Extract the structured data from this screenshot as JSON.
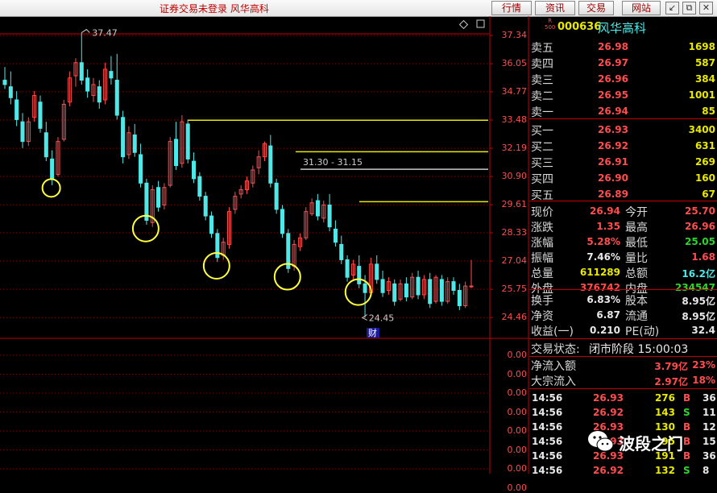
{
  "window": {
    "title": "证券交易未登录  风华高科",
    "buttons": [
      "行情",
      "资讯",
      "交易",
      "网站"
    ],
    "controls": [
      "↙",
      "⧉",
      "✕"
    ]
  },
  "stock": {
    "code": "000636",
    "name": "风华高科",
    "badge_top": "R",
    "badge_bottom": "500"
  },
  "ladder": [
    {
      "label": "卖五",
      "price": "26.98",
      "vol": "1698"
    },
    {
      "label": "卖四",
      "price": "26.97",
      "vol": "587"
    },
    {
      "label": "卖三",
      "price": "26.96",
      "vol": "384"
    },
    {
      "label": "卖二",
      "price": "26.95",
      "vol": "1001"
    },
    {
      "label": "卖一",
      "price": "26.94",
      "vol": "85"
    },
    {
      "label": "买一",
      "price": "26.93",
      "vol": "3400"
    },
    {
      "label": "买二",
      "price": "26.92",
      "vol": "631"
    },
    {
      "label": "买三",
      "price": "26.91",
      "vol": "269"
    },
    {
      "label": "买四",
      "price": "26.90",
      "vol": "160"
    },
    {
      "label": "买五",
      "price": "26.89",
      "vol": "67"
    }
  ],
  "quote": [
    {
      "l1": "现价",
      "v1": "26.94",
      "c1": "red",
      "l2": "今开",
      "v2": "25.70",
      "c2": "red"
    },
    {
      "l1": "涨跌",
      "v1": "1.35",
      "c1": "red",
      "l2": "最高",
      "v2": "26.96",
      "c2": "red"
    },
    {
      "l1": "涨幅",
      "v1": "5.28%",
      "c1": "red",
      "l2": "最低",
      "v2": "25.05",
      "c2": "grn"
    },
    {
      "l1": "振幅",
      "v1": "7.46%",
      "c1": "wht",
      "l2": "量比",
      "v2": "1.68",
      "c2": "red"
    },
    {
      "l1": "总量",
      "v1": "611289",
      "c1": "yel",
      "l2": "总额",
      "v2": "16.2亿",
      "c2": "cyan"
    },
    {
      "l1": "外盘",
      "v1": "376742",
      "c1": "red",
      "l2": "内盘",
      "v2": "234547",
      "c2": "grn"
    }
  ],
  "fundamentals": [
    {
      "l1": "换手",
      "v1": "6.83%",
      "l2": "股本",
      "v2": "8.95亿"
    },
    {
      "l1": "净资",
      "v1": "6.87",
      "l2": "流通",
      "v2": "8.95亿"
    },
    {
      "l1": "收益(一)",
      "v1": "0.210",
      "l2": "PE(动)",
      "v2": "32.4"
    }
  ],
  "status": {
    "label": "交易状态:",
    "value": "闭市阶段 15:00:03"
  },
  "flows": [
    {
      "label": "净流入额",
      "value": "3.79亿",
      "pct": "23%"
    },
    {
      "label": "大宗流入",
      "value": "2.97亿",
      "pct": "18%"
    }
  ],
  "ticks": [
    {
      "time": "14:56",
      "price": "26.93",
      "vol": "276",
      "side": "B",
      "n": "36"
    },
    {
      "time": "14:56",
      "price": "26.92",
      "vol": "143",
      "side": "S",
      "n": "11"
    },
    {
      "time": "14:56",
      "price": "26.93",
      "vol": "130",
      "side": "B",
      "n": "12"
    },
    {
      "time": "14:56",
      "price": "26.93",
      "vol": "95",
      "side": "B",
      "n": "15"
    },
    {
      "time": "14:56",
      "price": "26.93",
      "vol": "191",
      "side": "B",
      "n": "36"
    },
    {
      "time": "14:56",
      "price": "26.92",
      "vol": "132",
      "side": "S",
      "n": "8"
    }
  ],
  "lower_axis": [
    "0.00",
    "0.00",
    "0.00",
    "0.00",
    "0.00",
    "0.00",
    "0.00",
    "0.00"
  ],
  "watermark": "波段之门",
  "colors": {
    "up": "#ff4d4d",
    "down": "#4ee8e8",
    "bg": "#000000",
    "grid": "#8b0000",
    "yellow": "#e8e800"
  },
  "chart_data": {
    "type": "candlestick",
    "ylim": [
      24.1,
      37.6
    ],
    "y_ticks": [
      "37.34",
      "36.05",
      "34.77",
      "33.48",
      "32.19",
      "30.90",
      "29.61",
      "28.33",
      "27.04",
      "25.75",
      "24.46"
    ],
    "high_label": "37.47",
    "low_label": "24.45",
    "range_label": "31.30 - 31.15",
    "finance_marker": "财",
    "resistance_levels": [
      33.47,
      32.03,
      31.23,
      29.75
    ],
    "candles": [
      {
        "o": 35.3,
        "h": 35.9,
        "l": 34.9,
        "c": 35.1
      },
      {
        "o": 35.0,
        "h": 35.7,
        "l": 34.2,
        "c": 34.5
      },
      {
        "o": 34.4,
        "h": 34.8,
        "l": 33.2,
        "c": 33.5
      },
      {
        "o": 33.4,
        "h": 33.8,
        "l": 32.2,
        "c": 32.5
      },
      {
        "o": 32.5,
        "h": 33.6,
        "l": 32.3,
        "c": 33.4
      },
      {
        "o": 33.6,
        "h": 34.8,
        "l": 33.4,
        "c": 34.6
      },
      {
        "o": 34.3,
        "h": 34.6,
        "l": 32.9,
        "c": 33.1
      },
      {
        "o": 32.9,
        "h": 33.4,
        "l": 31.6,
        "c": 31.8
      },
      {
        "o": 31.7,
        "h": 32.1,
        "l": 30.5,
        "c": 30.8
      },
      {
        "o": 31.0,
        "h": 32.7,
        "l": 30.9,
        "c": 32.5
      },
      {
        "o": 32.6,
        "h": 34.4,
        "l": 32.5,
        "c": 34.2
      },
      {
        "o": 34.3,
        "h": 35.7,
        "l": 34.1,
        "c": 35.4
      },
      {
        "o": 35.5,
        "h": 36.3,
        "l": 35.0,
        "c": 36.1
      },
      {
        "o": 36.1,
        "h": 37.47,
        "l": 35.1,
        "c": 35.3
      },
      {
        "o": 35.4,
        "h": 35.8,
        "l": 34.5,
        "c": 34.8
      },
      {
        "o": 34.6,
        "h": 35.4,
        "l": 34.3,
        "c": 35.1
      },
      {
        "o": 35.0,
        "h": 35.3,
        "l": 34.0,
        "c": 34.3
      },
      {
        "o": 34.4,
        "h": 36.1,
        "l": 34.2,
        "c": 35.8
      },
      {
        "o": 35.7,
        "h": 36.4,
        "l": 35.1,
        "c": 35.4
      },
      {
        "o": 35.3,
        "h": 36.5,
        "l": 33.5,
        "c": 33.7
      },
      {
        "o": 33.6,
        "h": 33.9,
        "l": 31.5,
        "c": 31.8
      },
      {
        "o": 31.9,
        "h": 33.2,
        "l": 31.7,
        "c": 32.9
      },
      {
        "o": 32.8,
        "h": 33.3,
        "l": 31.8,
        "c": 32.0
      },
      {
        "o": 31.9,
        "h": 32.4,
        "l": 30.4,
        "c": 30.6
      },
      {
        "o": 30.6,
        "h": 30.8,
        "l": 28.7,
        "c": 28.9
      },
      {
        "o": 28.8,
        "h": 30.5,
        "l": 28.6,
        "c": 30.3
      },
      {
        "o": 30.4,
        "h": 30.7,
        "l": 29.3,
        "c": 29.5
      },
      {
        "o": 29.6,
        "h": 30.6,
        "l": 29.4,
        "c": 30.4
      },
      {
        "o": 30.5,
        "h": 32.7,
        "l": 30.4,
        "c": 32.5
      },
      {
        "o": 32.6,
        "h": 33.4,
        "l": 31.2,
        "c": 31.4
      },
      {
        "o": 31.5,
        "h": 33.7,
        "l": 31.3,
        "c": 33.4
      },
      {
        "o": 33.3,
        "h": 33.5,
        "l": 31.5,
        "c": 31.7
      },
      {
        "o": 31.6,
        "h": 32.0,
        "l": 30.6,
        "c": 30.8
      },
      {
        "o": 30.9,
        "h": 31.1,
        "l": 29.8,
        "c": 30.0
      },
      {
        "o": 30.0,
        "h": 30.2,
        "l": 28.9,
        "c": 29.1
      },
      {
        "o": 29.1,
        "h": 29.3,
        "l": 28.1,
        "c": 28.3
      },
      {
        "o": 28.3,
        "h": 28.5,
        "l": 27.0,
        "c": 27.2
      },
      {
        "o": 27.3,
        "h": 28.1,
        "l": 27.1,
        "c": 27.9
      },
      {
        "o": 27.8,
        "h": 29.5,
        "l": 27.6,
        "c": 29.3
      },
      {
        "o": 29.4,
        "h": 30.2,
        "l": 29.2,
        "c": 30.0
      },
      {
        "o": 30.1,
        "h": 30.5,
        "l": 29.9,
        "c": 30.3
      },
      {
        "o": 30.3,
        "h": 30.9,
        "l": 30.1,
        "c": 30.7
      },
      {
        "o": 30.6,
        "h": 31.4,
        "l": 30.4,
        "c": 31.2
      },
      {
        "o": 31.3,
        "h": 32.1,
        "l": 31.0,
        "c": 31.8
      },
      {
        "o": 31.8,
        "h": 32.5,
        "l": 31.6,
        "c": 32.4
      },
      {
        "o": 32.3,
        "h": 32.8,
        "l": 30.4,
        "c": 30.6
      },
      {
        "o": 30.6,
        "h": 30.8,
        "l": 29.2,
        "c": 29.4
      },
      {
        "o": 29.4,
        "h": 29.6,
        "l": 28.1,
        "c": 28.3
      },
      {
        "o": 28.3,
        "h": 28.5,
        "l": 26.5,
        "c": 26.7
      },
      {
        "o": 26.8,
        "h": 28.0,
        "l": 26.6,
        "c": 27.8
      },
      {
        "o": 27.7,
        "h": 28.3,
        "l": 27.5,
        "c": 28.1
      },
      {
        "o": 28.1,
        "h": 29.5,
        "l": 28.0,
        "c": 29.3
      },
      {
        "o": 29.2,
        "h": 29.9,
        "l": 29.1,
        "c": 29.7
      },
      {
        "o": 29.8,
        "h": 30.1,
        "l": 28.9,
        "c": 29.1
      },
      {
        "o": 29.0,
        "h": 29.8,
        "l": 28.8,
        "c": 29.6
      },
      {
        "o": 29.6,
        "h": 30.1,
        "l": 28.4,
        "c": 28.6
      },
      {
        "o": 28.5,
        "h": 28.9,
        "l": 27.7,
        "c": 27.9
      },
      {
        "o": 27.8,
        "h": 28.2,
        "l": 26.9,
        "c": 27.1
      },
      {
        "o": 27.1,
        "h": 27.3,
        "l": 26.1,
        "c": 26.3
      },
      {
        "o": 26.4,
        "h": 27.1,
        "l": 26.2,
        "c": 26.9
      },
      {
        "o": 26.8,
        "h": 27.3,
        "l": 25.8,
        "c": 26.0
      },
      {
        "o": 26.0,
        "h": 26.4,
        "l": 24.45,
        "c": 25.6
      },
      {
        "o": 25.6,
        "h": 27.2,
        "l": 25.5,
        "c": 26.9
      },
      {
        "o": 26.9,
        "h": 27.3,
        "l": 26.0,
        "c": 26.2
      },
      {
        "o": 26.2,
        "h": 26.6,
        "l": 25.4,
        "c": 25.6
      },
      {
        "o": 25.7,
        "h": 26.3,
        "l": 25.5,
        "c": 26.1
      },
      {
        "o": 26.0,
        "h": 26.2,
        "l": 25.0,
        "c": 25.2
      },
      {
        "o": 25.3,
        "h": 26.2,
        "l": 25.2,
        "c": 26.0
      },
      {
        "o": 26.0,
        "h": 26.3,
        "l": 25.2,
        "c": 25.4
      },
      {
        "o": 25.4,
        "h": 26.5,
        "l": 25.3,
        "c": 26.3
      },
      {
        "o": 26.3,
        "h": 26.6,
        "l": 25.3,
        "c": 25.5
      },
      {
        "o": 25.5,
        "h": 26.4,
        "l": 25.3,
        "c": 26.2
      },
      {
        "o": 26.2,
        "h": 26.5,
        "l": 24.9,
        "c": 25.1
      },
      {
        "o": 25.2,
        "h": 26.4,
        "l": 25.1,
        "c": 26.3
      },
      {
        "o": 26.2,
        "h": 26.4,
        "l": 25.0,
        "c": 25.2
      },
      {
        "o": 25.2,
        "h": 26.3,
        "l": 25.1,
        "c": 26.1
      },
      {
        "o": 26.1,
        "h": 26.3,
        "l": 25.5,
        "c": 25.7
      },
      {
        "o": 25.7,
        "h": 26.0,
        "l": 24.8,
        "c": 25.0
      },
      {
        "o": 25.0,
        "h": 26.1,
        "l": 24.9,
        "c": 25.9
      },
      {
        "o": 25.9,
        "h": 27.1,
        "l": 25.8,
        "c": 25.9
      }
    ]
  }
}
